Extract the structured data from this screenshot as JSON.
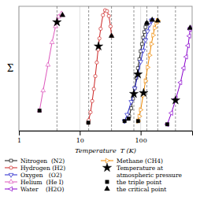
{
  "chart_data": {
    "type": "line",
    "x_label": "Temperature  T (K)",
    "y_label": "Σ",
    "log": "x",
    "xlim": [
      1,
      700
    ],
    "xticks": [
      1,
      10,
      100
    ],
    "ylim": [
      -1.0,
      0.55
    ],
    "tick_labels": "x",
    "grid": true,
    "legend": "bottom",
    "vertical_lines": [
      4.22,
      14,
      33.2,
      77.3,
      126.2,
      190.6,
      373.15
    ],
    "series": [
      {
        "name": "Nitrogen  (N2)",
        "type": "line",
        "color": "#111111",
        "marker": "square",
        "x": [
          63.15,
          65,
          70,
          75,
          80,
          85,
          90,
          95,
          100,
          105,
          110,
          115,
          120,
          125,
          126.2
        ],
        "values": [
          -0.85,
          -0.82,
          -0.72,
          -0.6,
          -0.47,
          -0.34,
          -0.22,
          -0.11,
          -0.01,
          0.08,
          0.16,
          0.23,
          0.29,
          0.33,
          0.34
        ]
      },
      {
        "name": "Hydrogen (H2)",
        "type": "line",
        "color": "#cc2222",
        "marker": "circle",
        "x": [
          13.8,
          14,
          15,
          16,
          17,
          18,
          19,
          20,
          21,
          22,
          24,
          26,
          28,
          30,
          32,
          33.2
        ],
        "values": [
          -0.9,
          -0.87,
          -0.77,
          -0.63,
          -0.48,
          -0.32,
          -0.15,
          0.01,
          0.15,
          0.27,
          0.44,
          0.5,
          0.49,
          0.43,
          0.3,
          0.18
        ]
      },
      {
        "name": "Oxygen   (O2)",
        "type": "line",
        "color": "#2222cc",
        "marker": "triangle-down",
        "x": [
          54.35,
          60,
          70,
          80,
          90,
          100,
          110,
          120,
          130,
          140,
          150,
          154.6
        ],
        "values": [
          -0.88,
          -0.8,
          -0.64,
          -0.47,
          -0.3,
          -0.14,
          0.0,
          0.13,
          0.24,
          0.32,
          0.37,
          0.38
        ]
      },
      {
        "name": "Helium  (He I)",
        "type": "line",
        "color": "#dd55bb",
        "marker": "triangle-up",
        "x": [
          2.18,
          2.5,
          3.0,
          3.5,
          4.0,
          4.5,
          5.0,
          5.19
        ],
        "values": [
          -0.75,
          -0.5,
          -0.18,
          0.1,
          0.3,
          0.42,
          0.46,
          0.44
        ]
      },
      {
        "name": "Water    (H2O)",
        "type": "line",
        "color": "#8800cc",
        "marker": "triangle-left",
        "x": [
          273.15,
          320,
          380,
          450,
          510,
          560,
          600,
          630,
          645,
          647.1
        ],
        "values": [
          -0.92,
          -0.78,
          -0.6,
          -0.4,
          -0.22,
          -0.08,
          0.06,
          0.18,
          0.26,
          0.28
        ]
      },
      {
        "name": "Methane (CH4)",
        "type": "line",
        "color": "#ee8800",
        "marker": "triangle-right",
        "x": [
          90.7,
          95,
          100,
          110,
          120,
          130,
          140,
          150,
          160,
          170,
          180,
          190,
          190.6
        ],
        "values": [
          -0.88,
          -0.82,
          -0.74,
          -0.56,
          -0.38,
          -0.21,
          -0.06,
          0.08,
          0.19,
          0.28,
          0.34,
          0.37,
          0.37
        ]
      },
      {
        "name": "Temperature at\natmospheric pressure",
        "type": "scatter",
        "color": "black",
        "marker": "star",
        "x": [
          77.3,
          20.3,
          90.2,
          4.22,
          373.15,
          111.7
        ],
        "values": [
          -0.5402,
          0.052,
          -0.2968,
          0.3528,
          -0.62055,
          -0.5294
        ]
      },
      {
        "name": "the triple point",
        "type": "scatter",
        "color": "black",
        "marker": "square",
        "x": [
          63.15,
          13.8,
          54.35,
          2.18,
          273.15,
          90.7
        ],
        "values": [
          -0.85,
          -0.9,
          -0.88,
          -0.75,
          -0.92,
          -0.88
        ]
      },
      {
        "name": "the critical point",
        "type": "scatter",
        "color": "black",
        "marker": "triangle-up",
        "x": [
          126.2,
          33.2,
          154.6,
          5.19,
          647.1,
          190.6
        ],
        "values": [
          0.34,
          0.18,
          0.38,
          0.44,
          0.28,
          0.37
        ]
      }
    ]
  }
}
